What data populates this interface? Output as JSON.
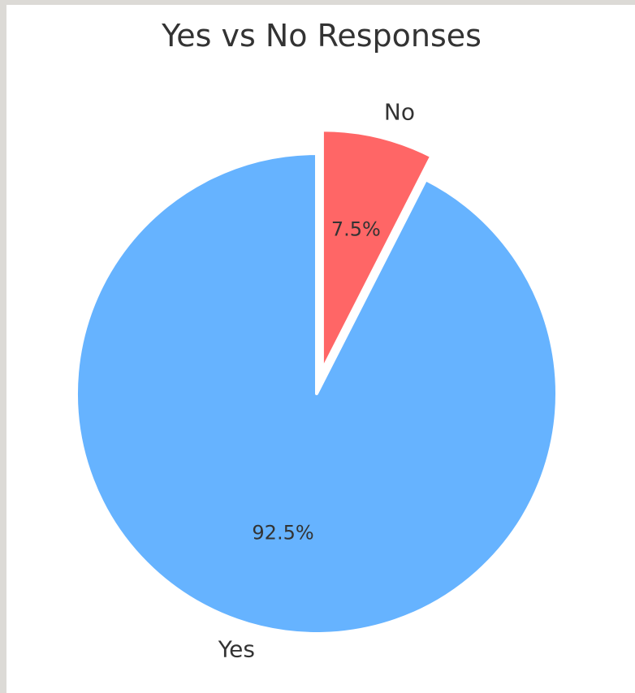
{
  "chart_data": {
    "type": "pie",
    "title": "Yes vs No Responses",
    "start_angle_deg": 90,
    "direction": "clockwise",
    "slices": [
      {
        "label": "No",
        "value": 7.5,
        "pct_label": "7.5%",
        "color": "#ff6666",
        "exploded": true
      },
      {
        "label": "Yes",
        "value": 92.5,
        "pct_label": "92.5%",
        "color": "#66b3ff",
        "exploded": false
      }
    ]
  }
}
